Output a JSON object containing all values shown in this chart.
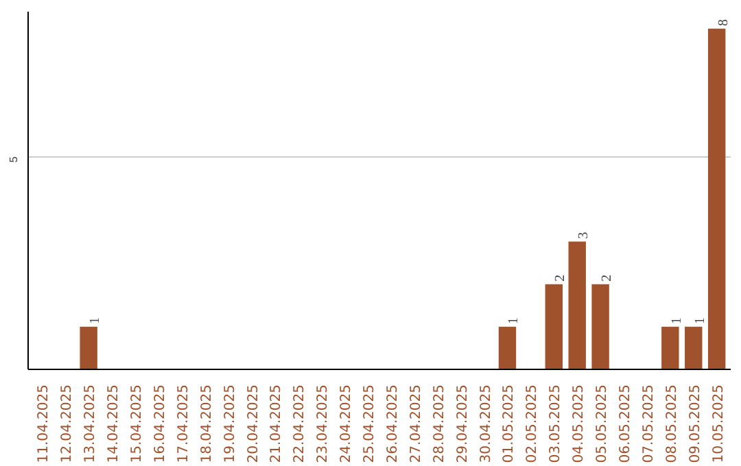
{
  "chart_data": {
    "type": "bar",
    "categories": [
      "11.04.2025",
      "12.04.2025",
      "13.04.2025",
      "14.04.2025",
      "15.04.2025",
      "16.04.2025",
      "17.04.2025",
      "18.04.2025",
      "19.04.2025",
      "20.04.2025",
      "21.04.2025",
      "22.04.2025",
      "23.04.2025",
      "24.04.2025",
      "25.04.2025",
      "26.04.2025",
      "27.04.2025",
      "28.04.2025",
      "29.04.2025",
      "30.04.2025",
      "01.05.2025",
      "02.05.2025",
      "03.05.2025",
      "04.05.2025",
      "05.05.2025",
      "06.05.2025",
      "07.05.2025",
      "08.05.2025",
      "09.05.2025",
      "10.05.2025"
    ],
    "values": [
      0,
      0,
      1,
      0,
      0,
      0,
      0,
      0,
      0,
      0,
      0,
      0,
      0,
      0,
      0,
      0,
      0,
      0,
      0,
      0,
      1,
      0,
      2,
      3,
      2,
      0,
      0,
      1,
      1,
      8
    ],
    "value_labels": [
      null,
      null,
      "1",
      null,
      null,
      null,
      null,
      null,
      null,
      null,
      null,
      null,
      null,
      null,
      null,
      null,
      null,
      null,
      null,
      null,
      "1",
      null,
      "2",
      "3",
      "2",
      null,
      null,
      "1",
      "1",
      "8"
    ],
    "color": "#a0522d",
    "ylim": [
      0,
      8.4
    ],
    "yticks": [
      5
    ],
    "grid": "y"
  }
}
